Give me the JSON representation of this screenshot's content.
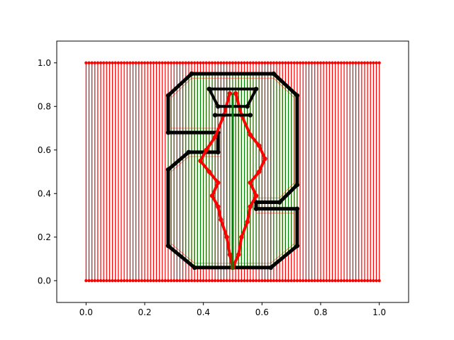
{
  "chart_data": {
    "type": "line",
    "title": "",
    "xlabel": "",
    "ylabel": "",
    "xlim": [
      -0.1,
      1.1
    ],
    "ylim": [
      -0.1,
      1.1
    ],
    "xticks": [
      0.0,
      0.2,
      0.4,
      0.6,
      0.8,
      1.0
    ],
    "yticks": [
      0.0,
      0.2,
      0.4,
      0.6,
      0.8,
      1.0
    ],
    "xtick_labels": [
      "0.0",
      "0.2",
      "0.4",
      "0.6",
      "0.8",
      "1.0"
    ],
    "ytick_labels": [
      "0.0",
      "0.2",
      "0.4",
      "0.6",
      "0.8",
      "1.0"
    ],
    "grid": false,
    "legend": "none",
    "colors": {
      "outer": "#ff0000",
      "middle": "#008000",
      "mark": "#000000",
      "inner_red": "#ff0000"
    },
    "outer_rect": {
      "x_min": 0.0,
      "x_max": 1.0,
      "y_min": 0.0,
      "y_max": 1.0,
      "columns": 100
    },
    "series": [
      {
        "role": "octagon-frame",
        "color": "#000000",
        "points": [
          [
            0.36,
            0.95
          ],
          [
            0.64,
            0.95
          ],
          [
            0.72,
            0.85
          ],
          [
            0.72,
            0.44
          ],
          [
            0.66,
            0.36
          ],
          [
            0.58,
            0.36
          ],
          [
            0.58,
            0.33
          ],
          [
            0.72,
            0.33
          ],
          [
            0.72,
            0.16
          ],
          [
            0.63,
            0.06
          ],
          [
            0.37,
            0.06
          ],
          [
            0.28,
            0.16
          ],
          [
            0.28,
            0.51
          ],
          [
            0.35,
            0.59
          ],
          [
            0.45,
            0.59
          ],
          [
            0.45,
            0.68
          ],
          [
            0.28,
            0.68
          ],
          [
            0.28,
            0.85
          ],
          [
            0.36,
            0.95
          ]
        ]
      },
      {
        "role": "leaf-left",
        "color": "#ff0000",
        "points": [
          [
            0.49,
            0.86
          ],
          [
            0.47,
            0.76
          ],
          [
            0.44,
            0.66
          ],
          [
            0.41,
            0.6
          ],
          [
            0.39,
            0.55
          ],
          [
            0.42,
            0.5
          ],
          [
            0.45,
            0.45
          ],
          [
            0.43,
            0.39
          ],
          [
            0.45,
            0.34
          ],
          [
            0.46,
            0.28
          ],
          [
            0.48,
            0.2
          ],
          [
            0.49,
            0.12
          ],
          [
            0.5,
            0.06
          ]
        ]
      },
      {
        "role": "leaf-right",
        "color": "#ff0000",
        "points": [
          [
            0.51,
            0.86
          ],
          [
            0.53,
            0.76
          ],
          [
            0.56,
            0.67
          ],
          [
            0.59,
            0.62
          ],
          [
            0.61,
            0.56
          ],
          [
            0.59,
            0.5
          ],
          [
            0.56,
            0.45
          ],
          [
            0.58,
            0.39
          ],
          [
            0.56,
            0.34
          ],
          [
            0.55,
            0.27
          ],
          [
            0.53,
            0.2
          ],
          [
            0.52,
            0.12
          ],
          [
            0.5,
            0.06
          ]
        ]
      },
      {
        "role": "stem-top",
        "color": "#000000",
        "points": [
          [
            0.42,
            0.88
          ],
          [
            0.58,
            0.88
          ],
          [
            0.55,
            0.8
          ],
          [
            0.45,
            0.8
          ],
          [
            0.42,
            0.88
          ]
        ]
      },
      {
        "role": "crossbar",
        "color": "#000000",
        "points": [
          [
            0.44,
            0.76
          ],
          [
            0.56,
            0.76
          ]
        ]
      }
    ]
  }
}
